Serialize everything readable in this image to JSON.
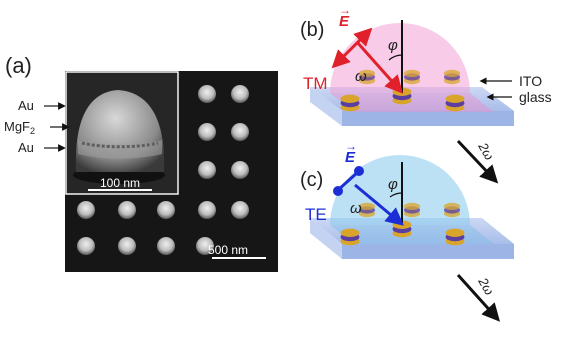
{
  "panel_a": {
    "label": "(a)",
    "layer_labels": [
      "Au",
      "MgF2",
      "Au"
    ],
    "inset_scale": "100 nm",
    "main_scale": "500 nm"
  },
  "panel_b": {
    "label": "(b)",
    "field": "E",
    "frequency": "ω",
    "angle": "φ",
    "polarization": "TM",
    "layers": [
      "ITO",
      "glass"
    ],
    "output": "2ω",
    "polarization_color": "#e0202a"
  },
  "panel_c": {
    "label": "(c)",
    "field": "E",
    "frequency": "ω",
    "angle": "φ",
    "polarization": "TE",
    "output": "2ω",
    "polarization_color": "#1c2fd6"
  },
  "colors": {
    "sem_background": "#161616",
    "particle_gold": "#d9a42a",
    "particle_dielectric": "#5a3ea0",
    "substrate": "#b9cdf1",
    "cone_tm": "#f3a1d6",
    "cone_te": "#8fcdef"
  }
}
